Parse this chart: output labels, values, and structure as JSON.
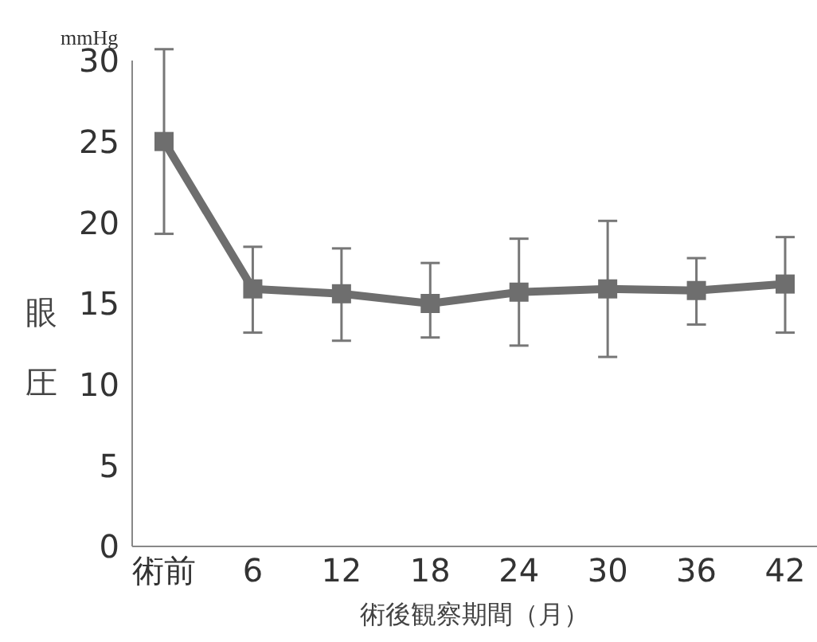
{
  "chart_data": {
    "type": "line",
    "ylabel": "眼圧",
    "xlabel": "術後観察期間（月）",
    "annotations": [
      "mmHg"
    ],
    "categories": [
      "術前",
      "6",
      "12",
      "18",
      "24",
      "30",
      "36",
      "42"
    ],
    "series": [
      {
        "color": "#6e6e6e",
        "values": [
          25,
          15.9,
          15.6,
          15.0,
          15.7,
          15.9,
          15.8,
          16.2
        ],
        "errors": [
          [
            19.3,
            30.7
          ],
          [
            13.2,
            18.5
          ],
          [
            12.7,
            18.4
          ],
          [
            12.9,
            17.5
          ],
          [
            12.4,
            19.0
          ],
          [
            11.7,
            20.1
          ],
          [
            13.7,
            17.8
          ],
          [
            13.2,
            19.1
          ]
        ]
      }
    ],
    "ylim": [
      0,
      30
    ],
    "yticks": [
      0,
      5,
      10,
      15,
      20,
      25,
      30
    ],
    "grid": false,
    "legend": false,
    "marker": "square",
    "line_style": "solid"
  }
}
